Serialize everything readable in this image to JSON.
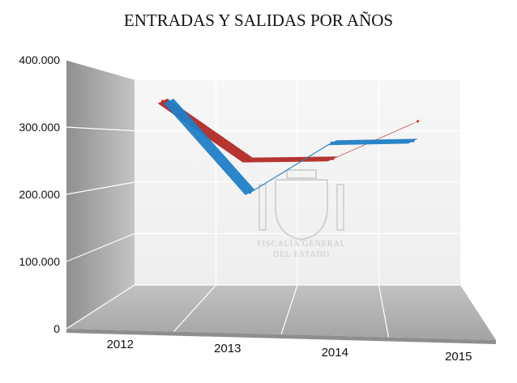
{
  "chart_data": {
    "type": "line",
    "title": "ENTRADAS Y SALIDAS POR AÑOS",
    "categories": [
      "2012",
      "2013",
      "2014",
      "2015"
    ],
    "series": [
      {
        "values": [
          350000,
          240000,
          242000,
          312000
        ],
        "color": "#b22a25"
      },
      {
        "values": [
          353000,
          175000,
          272000,
          275000
        ],
        "color": "#1f7ec6"
      }
    ],
    "ylim": [
      0,
      400000
    ],
    "yticks": [
      "0",
      "100.000",
      "200.000",
      "300.000",
      "400.000"
    ],
    "grid": true,
    "three_d": true,
    "legend": "none"
  },
  "watermark": {
    "lines": [
      "FISCALÍA GENERAL",
      "DEL ESTADO"
    ],
    "emblem": "coat-of-arms"
  },
  "colors": {
    "wall_back": "#f4f4f4",
    "wall_side": "#a9a9a9",
    "floor": "#b0b0b0",
    "floor_edge": "#9a9a9a",
    "grid_line": "#ffffff"
  }
}
